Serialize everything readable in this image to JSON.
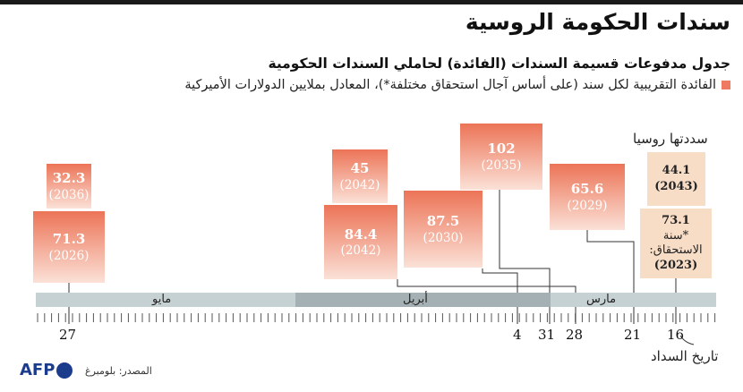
{
  "title": "سندات الحكومة الروسية",
  "subtitle": "جدول مدفوعات قسيمة السندات (الفائدة) لحاملي السندات الحكومية",
  "legend": "الفائدة التقريبية لكل سند (على أساس آجال استحقاق مختلفة*)، المعادل بملايين الدولارات الأميركية",
  "paid_label": "سددتها روسيا",
  "repayment_label": "تاريخ السداد",
  "source": "المصدر: بلومبرغ",
  "logo": "AFP",
  "colors": {
    "accent": "#ec7457",
    "paid": "#f7dcc6",
    "axis_band": "#c6d1d4",
    "axis_band_dark": "#a4b0b3",
    "logo": "#1b3c8c"
  },
  "chart_data": {
    "type": "timeline",
    "months": [
      {
        "name": "مايو"
      },
      {
        "name": "أبريل"
      },
      {
        "name": "مارس"
      }
    ],
    "days": [
      "27",
      "4",
      "31",
      "28",
      "21",
      "16"
    ],
    "payments": [
      {
        "value": "102",
        "maturity": "(2035)",
        "due": "31"
      },
      {
        "value": "87.5",
        "maturity": "(2030)",
        "due": "4"
      },
      {
        "value": "65.6",
        "maturity": "(2029)",
        "due": "21"
      },
      {
        "value": "45",
        "maturity": "(2042)",
        "due": "28"
      },
      {
        "value": "84.4",
        "maturity": "(2042)",
        "due": "28"
      },
      {
        "value": "32.3",
        "maturity": "(2036)",
        "due": "27"
      },
      {
        "value": "71.3",
        "maturity": "(2026)",
        "due": "27"
      }
    ],
    "paid": [
      {
        "value": "44.1",
        "maturity": "(2043)",
        "due": "16"
      },
      {
        "value": "73.1",
        "maturity": "(2023)",
        "note": "*سنة الاستحقاق:",
        "due": "16"
      }
    ]
  }
}
